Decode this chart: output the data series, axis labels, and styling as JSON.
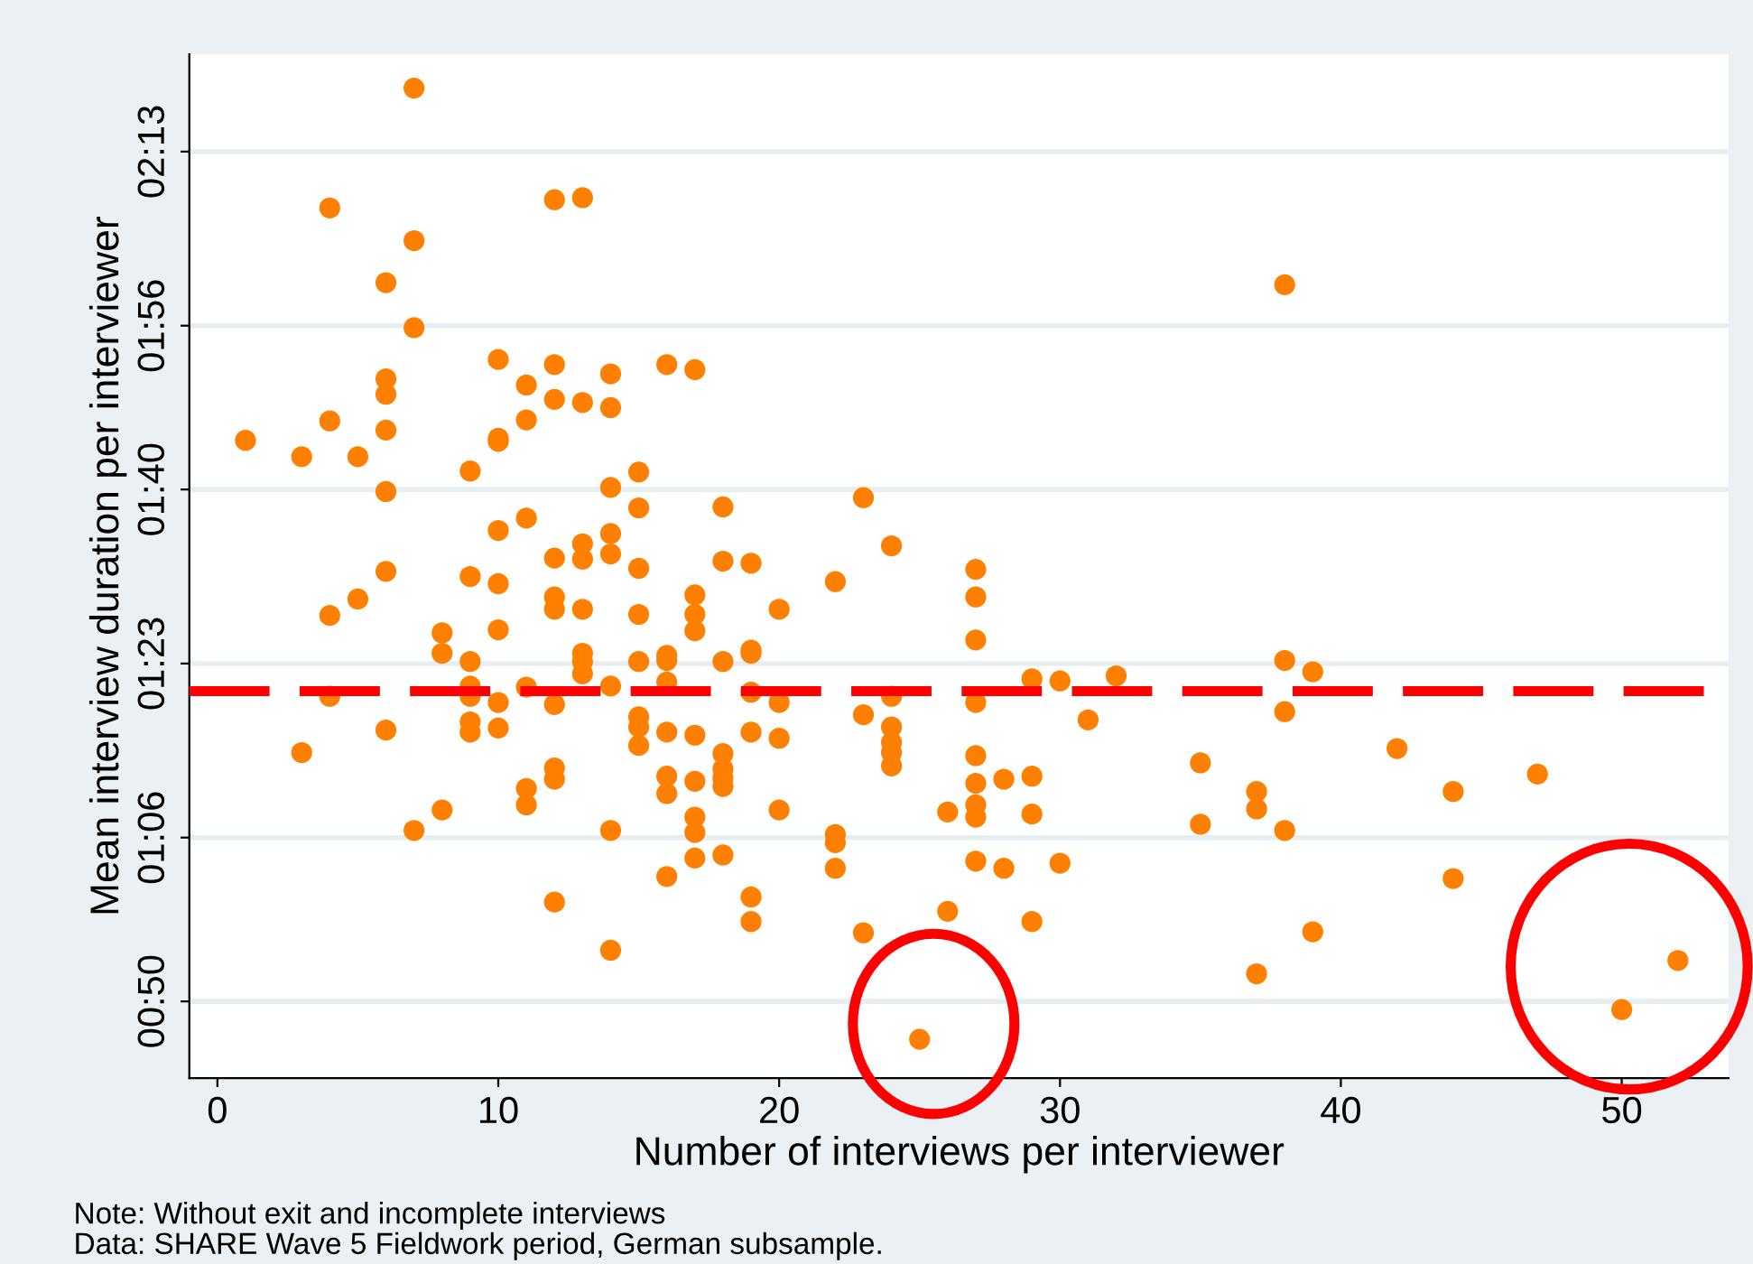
{
  "chart_data": {
    "type": "scatter",
    "xlabel": "Number of interviews per interviewer",
    "ylabel": "Mean interview duration per interviewer",
    "xlim": [
      -1,
      53.8
    ],
    "xticks": [
      0,
      10,
      20,
      30,
      40,
      50
    ],
    "ylim": [
      42.5,
      142.5
    ],
    "yticks": [
      {
        "value": 50,
        "label": "00:50"
      },
      {
        "value": 66,
        "label": "01:06"
      },
      {
        "value": 83,
        "label": "01:23"
      },
      {
        "value": 100,
        "label": "01:40"
      },
      {
        "value": 116,
        "label": "01:56"
      },
      {
        "value": 133,
        "label": "02:13"
      }
    ],
    "grid": "y",
    "marker": "circle",
    "legend": false,
    "ref_lines": [
      {
        "axis": "y",
        "value": 80.3,
        "color": "#ff0000",
        "line_style": "dashed"
      }
    ],
    "annotations": [
      "Note: Without exit and incomplete interviews",
      "Data: SHARE Wave 5 Fieldwork period, German subsample."
    ],
    "series": [
      {
        "color": "#ff8000",
        "x": [
          1,
          3,
          3,
          4,
          4,
          4,
          4,
          5,
          5,
          6,
          6,
          6,
          6,
          6,
          6,
          6,
          7,
          7,
          7,
          7,
          8,
          8,
          8,
          9,
          9,
          9,
          9,
          9,
          9,
          9,
          10,
          10,
          10,
          10,
          10,
          10,
          10,
          10,
          11,
          11,
          11,
          11,
          11,
          11,
          12,
          12,
          12,
          12,
          12,
          12,
          12,
          12,
          12,
          12,
          13,
          13,
          13,
          13,
          13,
          13,
          13,
          13,
          14,
          14,
          14,
          14,
          14,
          14,
          14,
          14,
          15,
          15,
          15,
          15,
          15,
          15,
          15,
          15,
          16,
          16,
          16,
          16,
          16,
          16,
          16,
          16,
          17,
          17,
          17,
          17,
          17,
          17,
          17,
          17,
          17,
          18,
          18,
          18,
          18,
          18,
          18,
          18,
          18,
          19,
          19,
          19,
          19,
          19,
          19,
          19,
          20,
          20,
          20,
          20,
          22,
          22,
          22,
          22,
          23,
          23,
          23,
          24,
          24,
          24,
          24,
          24,
          24,
          25,
          26,
          26,
          27,
          27,
          27,
          27,
          27,
          27,
          27,
          27,
          27,
          28,
          28,
          29,
          29,
          29,
          29,
          30,
          30,
          31,
          32,
          35,
          35,
          37,
          37,
          37,
          38,
          38,
          38,
          38,
          39,
          39,
          42,
          44,
          44,
          47,
          50,
          52
        ],
        "values": [
          104.8,
          103.2,
          74.3,
          127.5,
          106.7,
          87.7,
          79.8,
          103.2,
          89.3,
          120.2,
          110.8,
          109.3,
          105.8,
          99.8,
          92.0,
          76.5,
          139.2,
          124.3,
          115.8,
          66.7,
          86.0,
          84.0,
          68.7,
          101.8,
          91.5,
          83.2,
          80.8,
          79.8,
          77.3,
          76.3,
          112.7,
          105.0,
          104.7,
          96.0,
          90.8,
          86.3,
          79.2,
          76.7,
          110.2,
          106.8,
          97.2,
          80.7,
          70.8,
          69.2,
          128.3,
          112.2,
          108.8,
          93.3,
          89.5,
          88.3,
          79.0,
          72.8,
          71.7,
          59.7,
          128.5,
          108.5,
          94.7,
          93.2,
          88.3,
          84.0,
          83.2,
          82.0,
          111.3,
          108.0,
          100.2,
          95.7,
          93.7,
          80.8,
          66.7,
          55.0,
          101.7,
          98.2,
          92.3,
          87.8,
          83.2,
          77.8,
          76.8,
          75.0,
          112.2,
          83.8,
          83.3,
          81.2,
          76.3,
          72.0,
          70.3,
          62.2,
          111.7,
          89.7,
          87.8,
          86.2,
          76.0,
          71.5,
          68.0,
          66.5,
          64.0,
          98.3,
          93.0,
          83.2,
          74.2,
          72.7,
          71.8,
          71.0,
          64.3,
          92.8,
          84.3,
          84.0,
          80.2,
          76.3,
          60.2,
          57.8,
          88.3,
          79.2,
          75.7,
          68.7,
          91.0,
          66.3,
          65.5,
          63.0,
          99.2,
          78.0,
          56.7,
          94.5,
          79.8,
          76.8,
          75.3,
          74.3,
          73.0,
          46.3,
          68.5,
          58.8,
          92.2,
          89.5,
          85.3,
          79.2,
          74.0,
          71.3,
          69.2,
          68.0,
          63.7,
          71.7,
          63.0,
          81.5,
          72.0,
          68.3,
          57.8,
          81.3,
          63.5,
          77.5,
          81.8,
          73.3,
          67.3,
          70.5,
          68.8,
          52.7,
          120.0,
          83.3,
          78.3,
          66.7,
          82.2,
          56.8,
          74.7,
          70.5,
          62.0,
          72.2,
          49.2,
          54.0
        ]
      }
    ]
  }
}
